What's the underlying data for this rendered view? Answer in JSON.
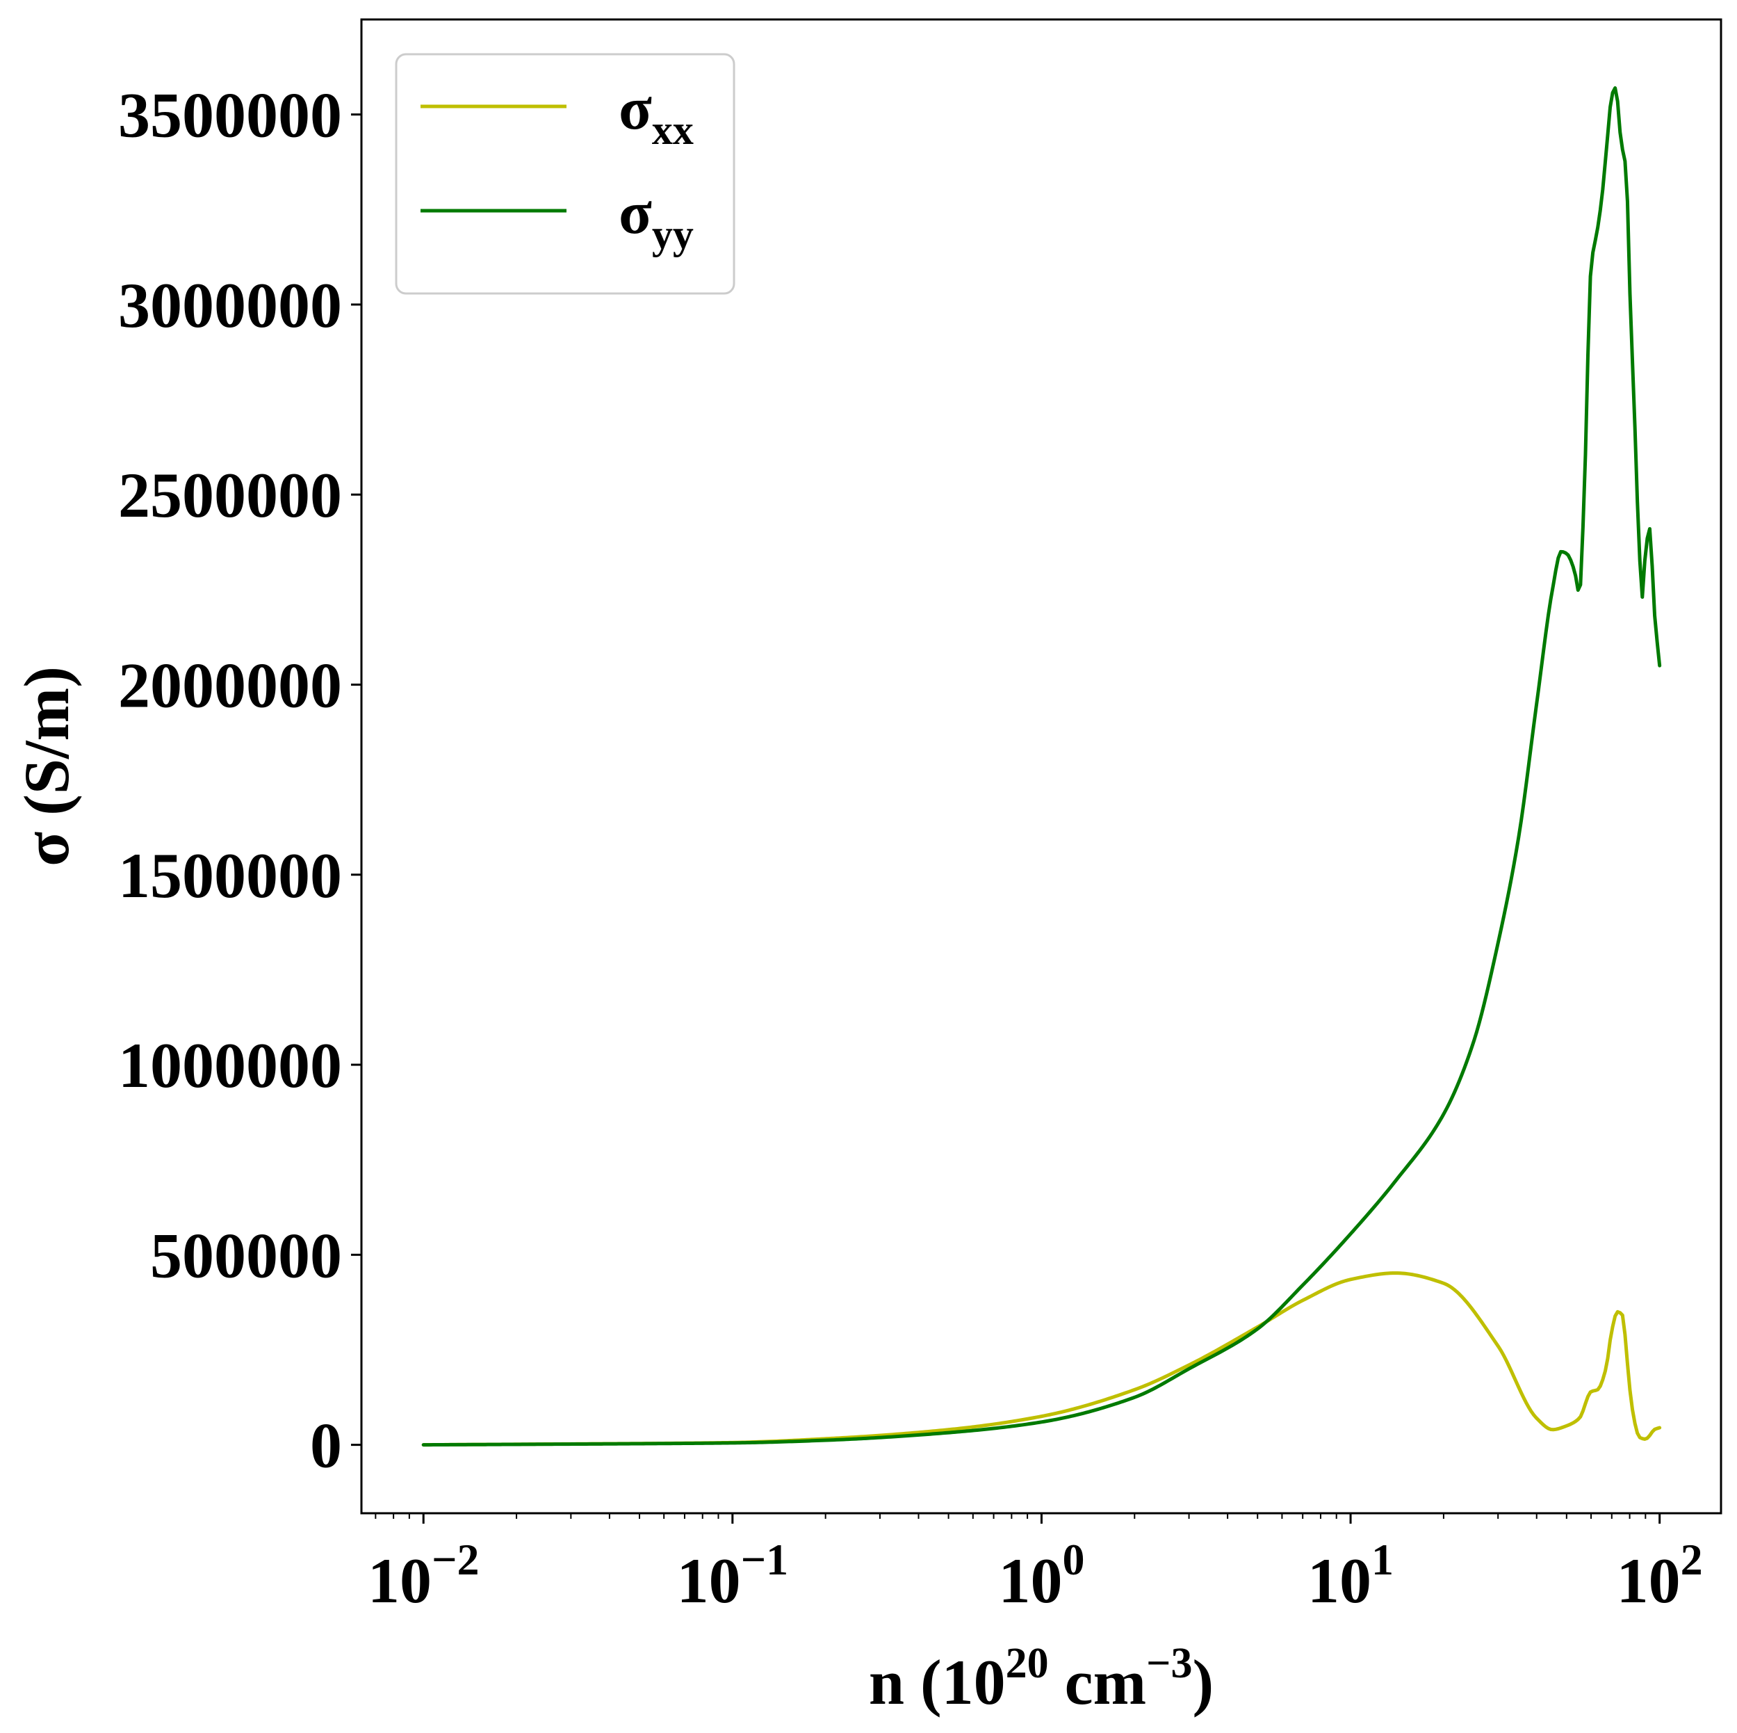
{
  "chart_data": {
    "type": "line",
    "xscale": "log",
    "xlim": [
      0.0063,
      158
    ],
    "ylim": [
      -180000,
      3750000
    ],
    "grid": false,
    "legend_position": "top-left",
    "x_ticks": [
      {
        "value": 0.01,
        "base": "10",
        "exp": "−2"
      },
      {
        "value": 0.1,
        "base": "10",
        "exp": "−1"
      },
      {
        "value": 1,
        "base": "10",
        "exp": "0"
      },
      {
        "value": 10,
        "base": "10",
        "exp": "1"
      },
      {
        "value": 100,
        "base": "10",
        "exp": "2"
      }
    ],
    "y_ticks": [
      {
        "value": 0,
        "label": "0"
      },
      {
        "value": 500000,
        "label": "500000"
      },
      {
        "value": 1000000,
        "label": "1000000"
      },
      {
        "value": 1500000,
        "label": "1500000"
      },
      {
        "value": 2000000,
        "label": "2000000"
      },
      {
        "value": 2500000,
        "label": "2500000"
      },
      {
        "value": 3000000,
        "label": "3000000"
      },
      {
        "value": 3500000,
        "label": "3500000"
      }
    ],
    "xlabel": {
      "main": "n (10",
      "sup1": "20",
      "mid": " cm",
      "sup2": "−3",
      "end": ")"
    },
    "ylabel": "σ (S/m)",
    "series": [
      {
        "name": "σ",
        "subscript": "xx",
        "color": "#bfbf00",
        "x": [
          0.01,
          0.02,
          0.05,
          0.1,
          0.2,
          0.5,
          1,
          2,
          3,
          5,
          7,
          10,
          14,
          20,
          30,
          40,
          45,
          50,
          55,
          60,
          63,
          67,
          70,
          73,
          76,
          78,
          80,
          83,
          86,
          90,
          93,
          96,
          100
        ],
        "y": [
          0,
          1500,
          3500,
          6000,
          16000,
          40000,
          75000,
          145000,
          210000,
          310000,
          380000,
          435000,
          452000,
          425000,
          260000,
          70000,
          40000,
          50000,
          70000,
          140000,
          145000,
          200000,
          300000,
          350000,
          340000,
          250000,
          150000,
          60000,
          20000,
          15000,
          25000,
          40000,
          45000
        ]
      },
      {
        "name": "σ",
        "subscript": "yy",
        "color": "#007a00",
        "x": [
          0.01,
          0.02,
          0.05,
          0.1,
          0.2,
          0.5,
          1,
          2,
          3,
          5,
          7,
          10,
          14,
          20,
          25,
          30,
          35,
          40,
          45,
          48,
          50,
          53,
          55,
          57,
          60,
          63,
          65,
          68,
          70,
          72,
          75,
          78,
          80,
          83,
          86,
          88,
          90,
          93,
          96,
          100
        ],
        "y": [
          0,
          1200,
          3000,
          5000,
          12000,
          32000,
          60000,
          125000,
          200000,
          305000,
          420000,
          555000,
          695000,
          870000,
          1060000,
          1320000,
          1600000,
          1950000,
          2250000,
          2350000,
          2345000,
          2300000,
          2240000,
          2500000,
          3100000,
          3200000,
          3280000,
          3450000,
          3550000,
          3570000,
          3430000,
          3350000,
          3050000,
          2700000,
          2350000,
          2230000,
          2350000,
          2410000,
          2200000,
          2050000
        ]
      }
    ]
  }
}
